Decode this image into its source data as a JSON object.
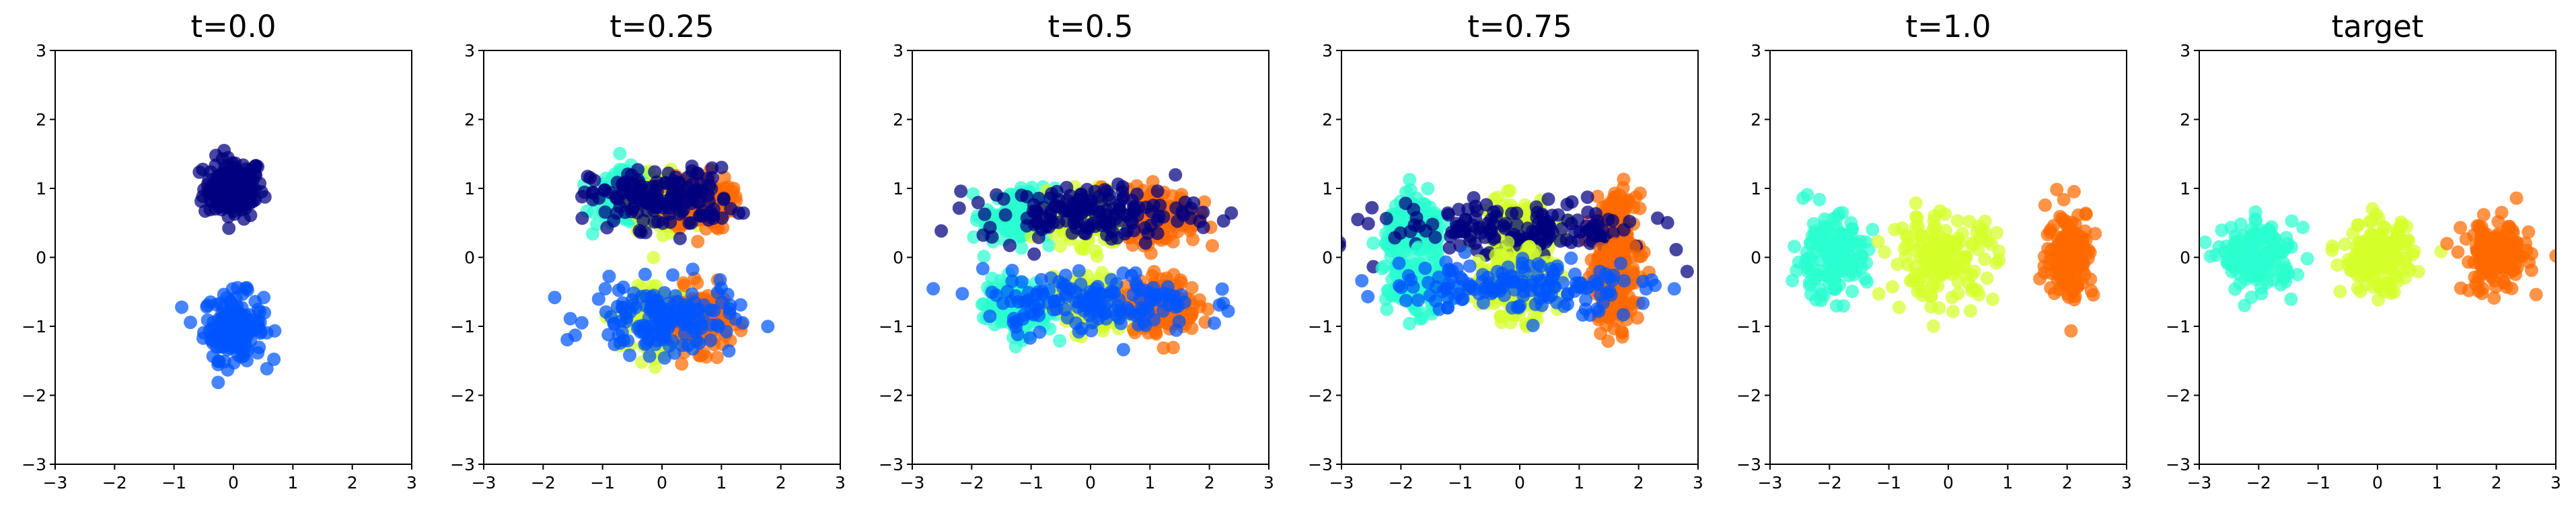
{
  "chart_data": [
    {
      "type": "scatter",
      "title": "t=0.0",
      "xlim": [
        -3,
        3
      ],
      "ylim": [
        -3,
        3
      ],
      "xticks": [
        -3,
        -2,
        -1,
        0,
        1,
        2,
        3
      ],
      "yticks": [
        -3,
        -2,
        -1,
        0,
        1,
        2,
        3
      ],
      "xtick_labels": [
        "−3",
        "−2",
        "−1",
        "0",
        "1",
        "2",
        "3"
      ],
      "ytick_labels": [
        "−3",
        "−2",
        "−1",
        "0",
        "1",
        "2",
        "3"
      ],
      "grid": false,
      "clusters": [
        {
          "color": "#000080",
          "center": [
            0,
            1
          ],
          "spread": [
            0.25,
            0.22
          ]
        },
        {
          "color": "#0055ff",
          "center": [
            0,
            -1
          ],
          "spread": [
            0.25,
            0.24
          ]
        }
      ]
    },
    {
      "type": "scatter",
      "title": "t=0.25",
      "xlim": [
        -3,
        3
      ],
      "ylim": [
        -3,
        3
      ],
      "xticks": [
        -3,
        -2,
        -1,
        0,
        1,
        2,
        3
      ],
      "yticks": [
        -3,
        -2,
        -1,
        0,
        1,
        2,
        3
      ],
      "xtick_labels": [
        "−3",
        "−2",
        "−1",
        "0",
        "1",
        "2",
        "3"
      ],
      "ytick_labels": [
        "−3",
        "−2",
        "−1",
        "0",
        "1",
        "2",
        "3"
      ],
      "grid": false,
      "clusters": [
        {
          "color": "#2affd0",
          "center": [
            -0.6,
            0.85
          ],
          "spread": [
            0.25,
            0.2
          ]
        },
        {
          "color": "#d4ff2a",
          "center": [
            0.0,
            0.8
          ],
          "spread": [
            0.25,
            0.2
          ]
        },
        {
          "color": "#ff6a00",
          "center": [
            0.65,
            0.8
          ],
          "spread": [
            0.25,
            0.2
          ]
        },
        {
          "color": "#000080",
          "center": [
            0.0,
            0.85
          ],
          "spread": [
            0.6,
            0.22
          ]
        },
        {
          "color": "#d4ff2a",
          "center": [
            0.0,
            -0.9
          ],
          "spread": [
            0.25,
            0.22
          ]
        },
        {
          "color": "#ff6a00",
          "center": [
            0.65,
            -0.9
          ],
          "spread": [
            0.25,
            0.22
          ]
        },
        {
          "color": "#0055ff",
          "center": [
            0.0,
            -0.9
          ],
          "spread": [
            0.6,
            0.25
          ]
        }
      ]
    },
    {
      "type": "scatter",
      "title": "t=0.5",
      "xlim": [
        -3,
        3
      ],
      "ylim": [
        -3,
        3
      ],
      "xticks": [
        -3,
        -2,
        -1,
        0,
        1,
        2,
        3
      ],
      "yticks": [
        -3,
        -2,
        -1,
        0,
        1,
        2,
        3
      ],
      "xtick_labels": [
        "−3",
        "−2",
        "−1",
        "0",
        "1",
        "2",
        "3"
      ],
      "ytick_labels": [
        "−3",
        "−2",
        "−1",
        "0",
        "1",
        "2",
        "3"
      ],
      "grid": false,
      "clusters": [
        {
          "color": "#2affd0",
          "center": [
            -1.2,
            0.6
          ],
          "spread": [
            0.3,
            0.2
          ]
        },
        {
          "color": "#d4ff2a",
          "center": [
            0.0,
            0.6
          ],
          "spread": [
            0.3,
            0.2
          ]
        },
        {
          "color": "#ff6a00",
          "center": [
            1.2,
            0.6
          ],
          "spread": [
            0.3,
            0.2
          ]
        },
        {
          "color": "#000080",
          "center": [
            0.0,
            0.65
          ],
          "spread": [
            0.9,
            0.2
          ]
        },
        {
          "color": "#2affd0",
          "center": [
            -1.2,
            -0.7
          ],
          "spread": [
            0.3,
            0.2
          ]
        },
        {
          "color": "#d4ff2a",
          "center": [
            0.0,
            -0.7
          ],
          "spread": [
            0.3,
            0.2
          ]
        },
        {
          "color": "#ff6a00",
          "center": [
            1.2,
            -0.7
          ],
          "spread": [
            0.3,
            0.2
          ]
        },
        {
          "color": "#0055ff",
          "center": [
            0.0,
            -0.65
          ],
          "spread": [
            0.9,
            0.22
          ]
        }
      ]
    },
    {
      "type": "scatter",
      "title": "t=0.75",
      "xlim": [
        -3,
        3
      ],
      "ylim": [
        -3,
        3
      ],
      "xticks": [
        -3,
        -2,
        -1,
        0,
        1,
        2,
        3
      ],
      "yticks": [
        -3,
        -2,
        -1,
        0,
        1,
        2,
        3
      ],
      "xtick_labels": [
        "−3",
        "−2",
        "−1",
        "0",
        "1",
        "2",
        "3"
      ],
      "ytick_labels": [
        "−3",
        "−2",
        "−1",
        "0",
        "1",
        "2",
        "3"
      ],
      "grid": false,
      "clusters": [
        {
          "color": "#2affd0",
          "center": [
            -1.75,
            0.4
          ],
          "spread": [
            0.25,
            0.22
          ]
        },
        {
          "color": "#d4ff2a",
          "center": [
            -0.05,
            0.4
          ],
          "spread": [
            0.3,
            0.22
          ]
        },
        {
          "color": "#ff6a00",
          "center": [
            1.6,
            0.3
          ],
          "spread": [
            0.18,
            0.3
          ]
        },
        {
          "color": "#000080",
          "center": [
            0.0,
            0.4
          ],
          "spread": [
            1.1,
            0.2
          ]
        },
        {
          "color": "#2affd0",
          "center": [
            -1.75,
            -0.4
          ],
          "spread": [
            0.25,
            0.2
          ]
        },
        {
          "color": "#d4ff2a",
          "center": [
            -0.05,
            -0.4
          ],
          "spread": [
            0.3,
            0.25
          ]
        },
        {
          "color": "#ff6a00",
          "center": [
            1.6,
            -0.4
          ],
          "spread": [
            0.18,
            0.3
          ]
        },
        {
          "color": "#0055ff",
          "center": [
            0.0,
            -0.4
          ],
          "spread": [
            1.1,
            0.2
          ]
        }
      ]
    },
    {
      "type": "scatter",
      "title": "t=1.0",
      "xlim": [
        -3,
        3
      ],
      "ylim": [
        -3,
        3
      ],
      "xticks": [
        -3,
        -2,
        -1,
        0,
        1,
        2,
        3
      ],
      "yticks": [
        -3,
        -2,
        -1,
        0,
        1,
        2,
        3
      ],
      "xtick_labels": [
        "−3",
        "−2",
        "−1",
        "0",
        "1",
        "2",
        "3"
      ],
      "ytick_labels": [
        "−3",
        "−2",
        "−1",
        "0",
        "1",
        "2",
        "3"
      ],
      "grid": false,
      "clusters": [
        {
          "color": "#2affd0",
          "center": [
            -2.0,
            0.0
          ],
          "spread": [
            0.3,
            0.3
          ]
        },
        {
          "color": "#d4ff2a",
          "center": [
            -0.1,
            0.0
          ],
          "spread": [
            0.45,
            0.3
          ]
        },
        {
          "color": "#ff6a00",
          "center": [
            2.05,
            0.05
          ],
          "spread": [
            0.2,
            0.33
          ]
        }
      ]
    },
    {
      "type": "scatter",
      "title": "target",
      "xlim": [
        -3,
        3
      ],
      "ylim": [
        -3,
        3
      ],
      "xticks": [
        -3,
        -2,
        -1,
        0,
        1,
        2,
        3
      ],
      "yticks": [
        -3,
        -2,
        -1,
        0,
        1,
        2,
        3
      ],
      "xtick_labels": [
        "−3",
        "−2",
        "−1",
        "0",
        "1",
        "2",
        "3"
      ],
      "ytick_labels": [
        "−3",
        "−2",
        "−1",
        "0",
        "1",
        "2",
        "3"
      ],
      "grid": false,
      "clusters": [
        {
          "color": "#2affd0",
          "center": [
            -2.0,
            0.0
          ],
          "spread": [
            0.3,
            0.25
          ]
        },
        {
          "color": "#d4ff2a",
          "center": [
            0.0,
            0.0
          ],
          "spread": [
            0.3,
            0.25
          ]
        },
        {
          "color": "#ff6a00",
          "center": [
            2.0,
            0.0
          ],
          "spread": [
            0.28,
            0.26
          ]
        }
      ]
    }
  ]
}
